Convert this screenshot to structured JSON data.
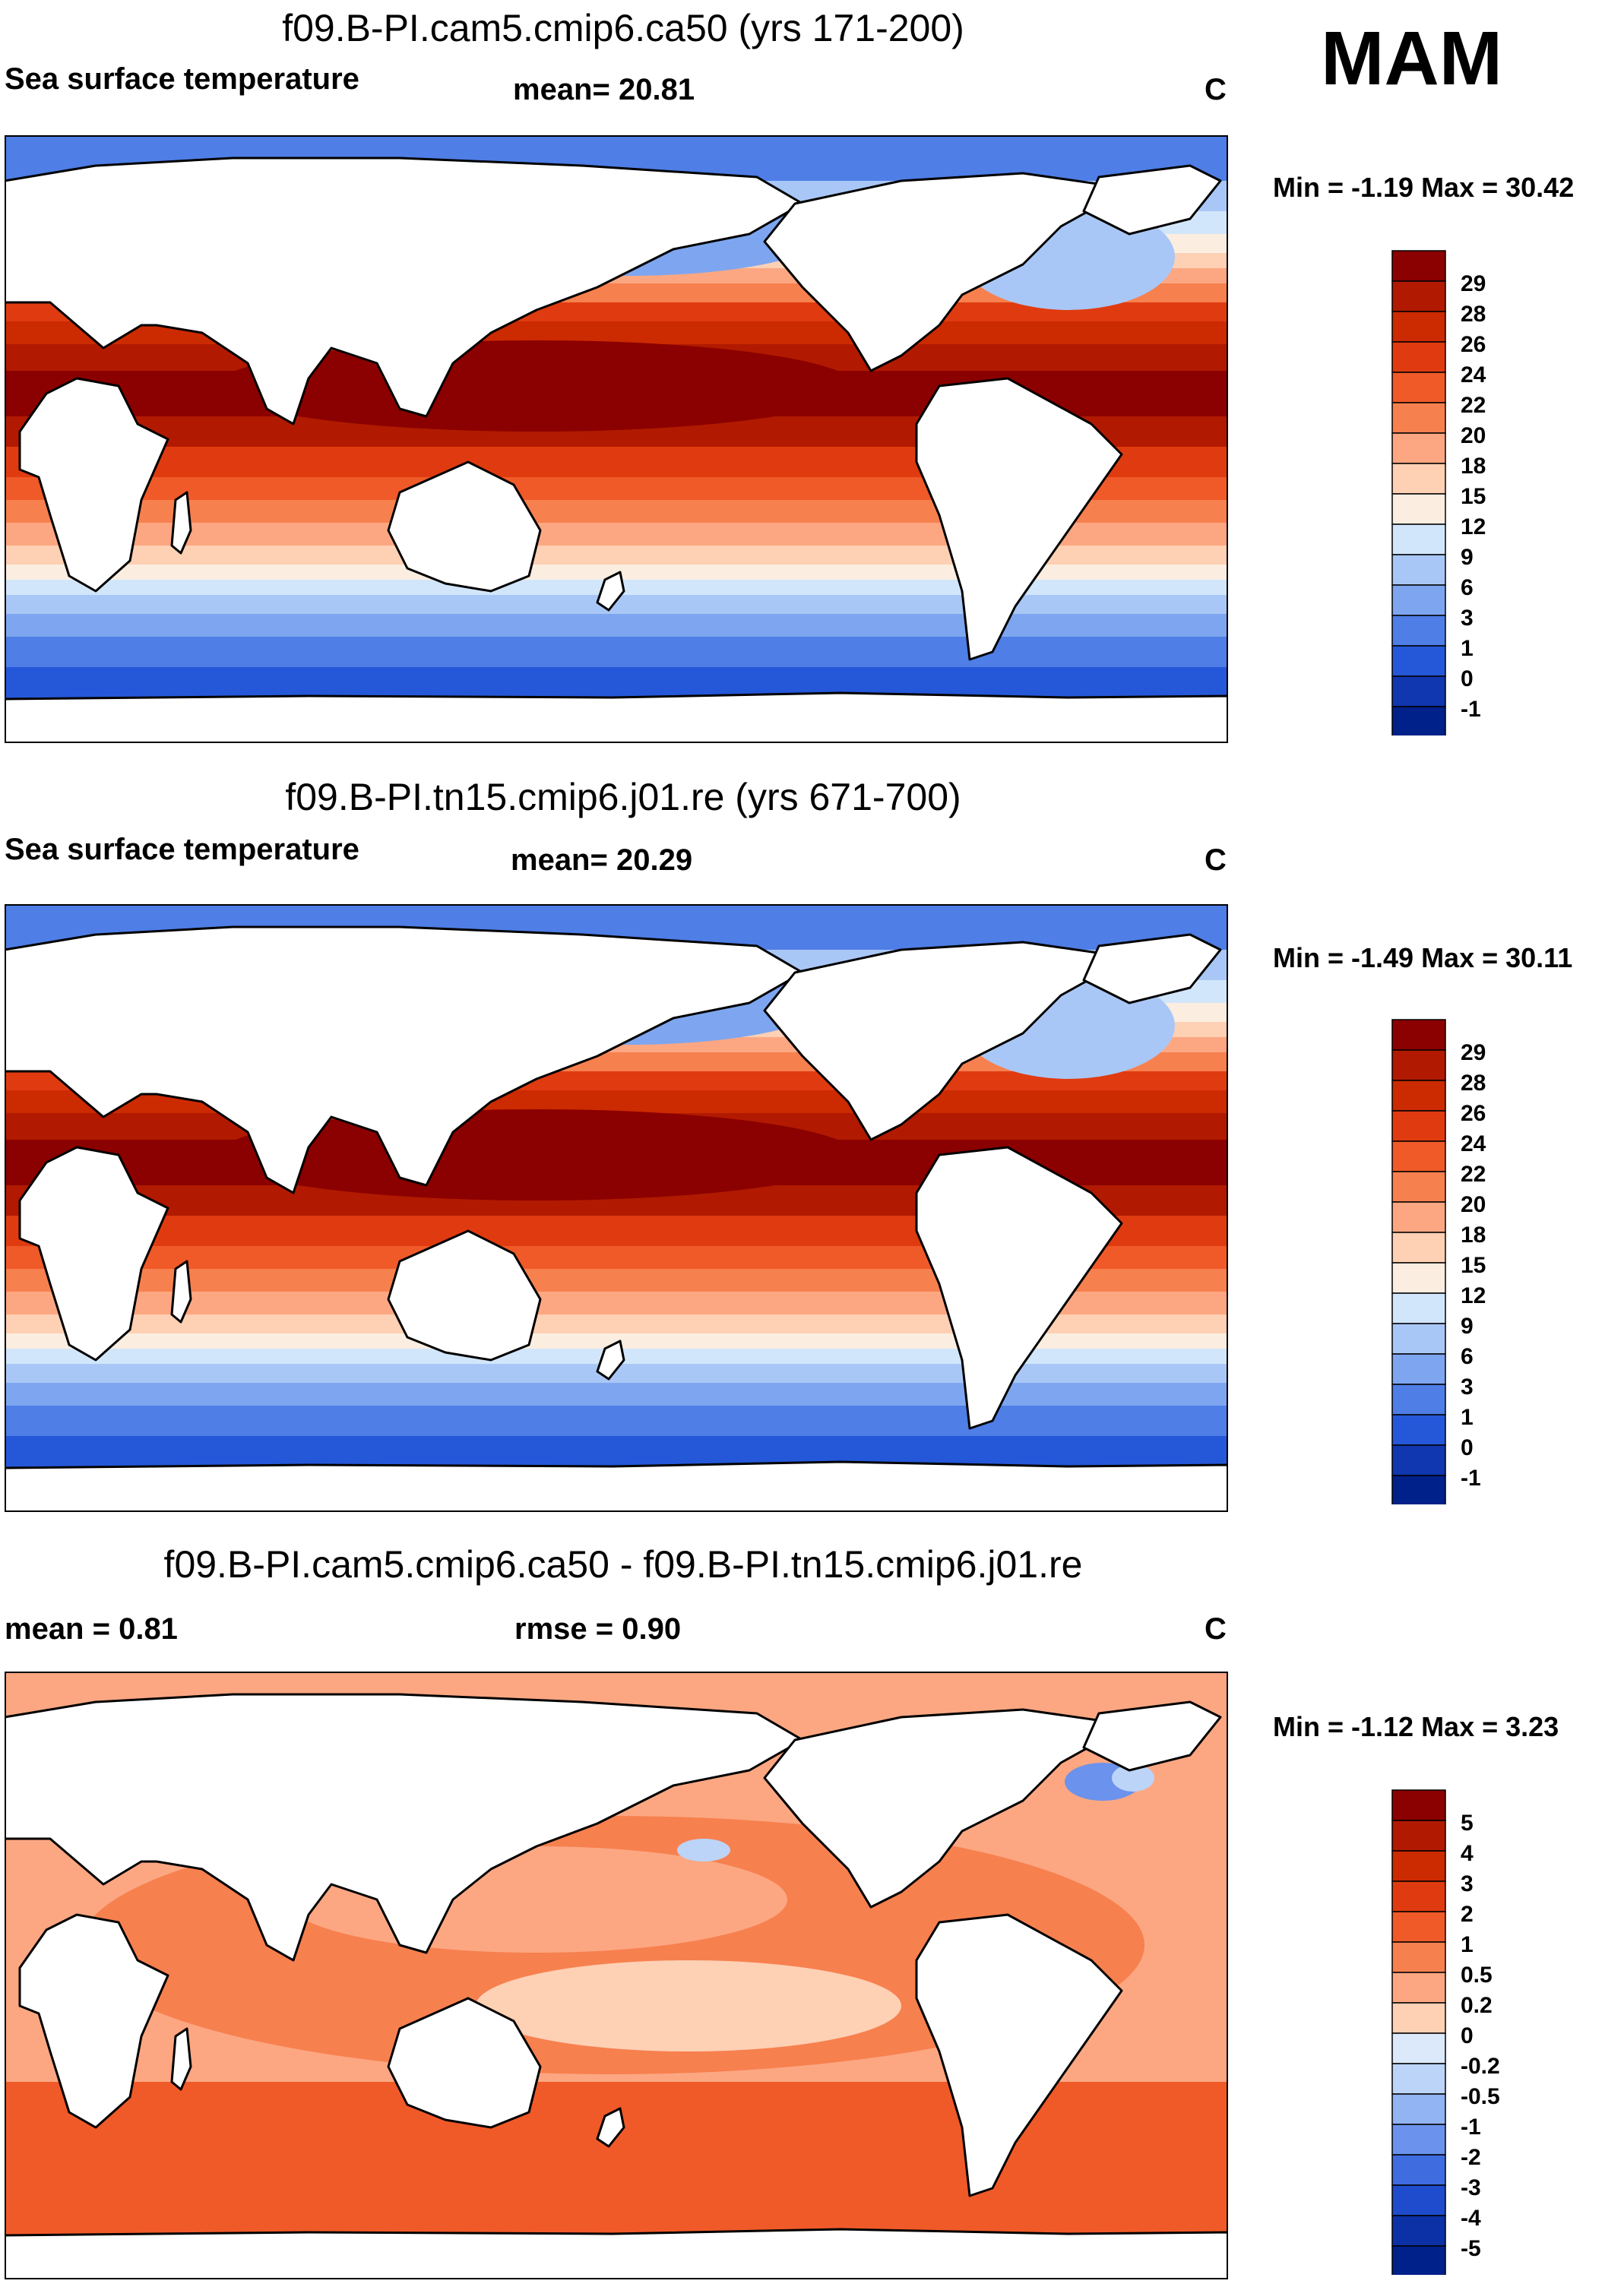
{
  "season": "MAM",
  "panels": [
    {
      "title": "f09.B-PI.cam5.cmip6.ca50 (yrs 171-200)",
      "variable": "Sea surface temperature",
      "stat1": "mean=  20.81",
      "stat2": "",
      "units": "C",
      "minmax": "Min =  -1.19 Max =  30.42",
      "levels": [
        "29",
        "28",
        "26",
        "24",
        "22",
        "20",
        "18",
        "15",
        "12",
        "9",
        "6",
        "3",
        "1",
        "0",
        "-1"
      ],
      "colors": [
        "#8b0000",
        "#b11a00",
        "#cc2a00",
        "#e03b10",
        "#f05a28",
        "#f7804f",
        "#fca782",
        "#fed0b4",
        "#fbeee0",
        "#d2e6fb",
        "#a9c7f6",
        "#7ea6f0",
        "#4e7ee6",
        "#2558d8",
        "#1036b0",
        "#00208a"
      ]
    },
    {
      "title": "f09.B-PI.tn15.cmip6.j01.re (yrs 671-700)",
      "variable": "Sea surface temperature",
      "stat1": "mean=  20.29",
      "stat2": "",
      "units": "C",
      "minmax": "Min =  -1.49 Max =  30.11",
      "levels": [
        "29",
        "28",
        "26",
        "24",
        "22",
        "20",
        "18",
        "15",
        "12",
        "9",
        "6",
        "3",
        "1",
        "0",
        "-1"
      ],
      "colors": [
        "#8b0000",
        "#b11a00",
        "#cc2a00",
        "#e03b10",
        "#f05a28",
        "#f7804f",
        "#fca782",
        "#fed0b4",
        "#fbeee0",
        "#d2e6fb",
        "#a9c7f6",
        "#7ea6f0",
        "#4e7ee6",
        "#2558d8",
        "#1036b0",
        "#00208a"
      ]
    },
    {
      "title": "f09.B-PI.cam5.cmip6.ca50 - f09.B-PI.tn15.cmip6.j01.re",
      "variable": "",
      "stat1": "mean =   0.81",
      "stat2": "rmse =   0.90",
      "units": "C",
      "minmax": "Min =  -1.12 Max =   3.23",
      "levels": [
        "5",
        "4",
        "3",
        "2",
        "1",
        "0.5",
        "0.2",
        "0",
        "-0.2",
        "-0.5",
        "-1",
        "-2",
        "-3",
        "-4",
        "-5"
      ],
      "colors": [
        "#8b0000",
        "#b11a00",
        "#cc2a00",
        "#e03b10",
        "#f05a28",
        "#f7804f",
        "#fca782",
        "#fed0b4",
        "#dbe9fb",
        "#bcd4f8",
        "#93b4f2",
        "#6b92ec",
        "#3f6de0",
        "#1e4ccd",
        "#0c30a6",
        "#00208a"
      ]
    }
  ]
}
